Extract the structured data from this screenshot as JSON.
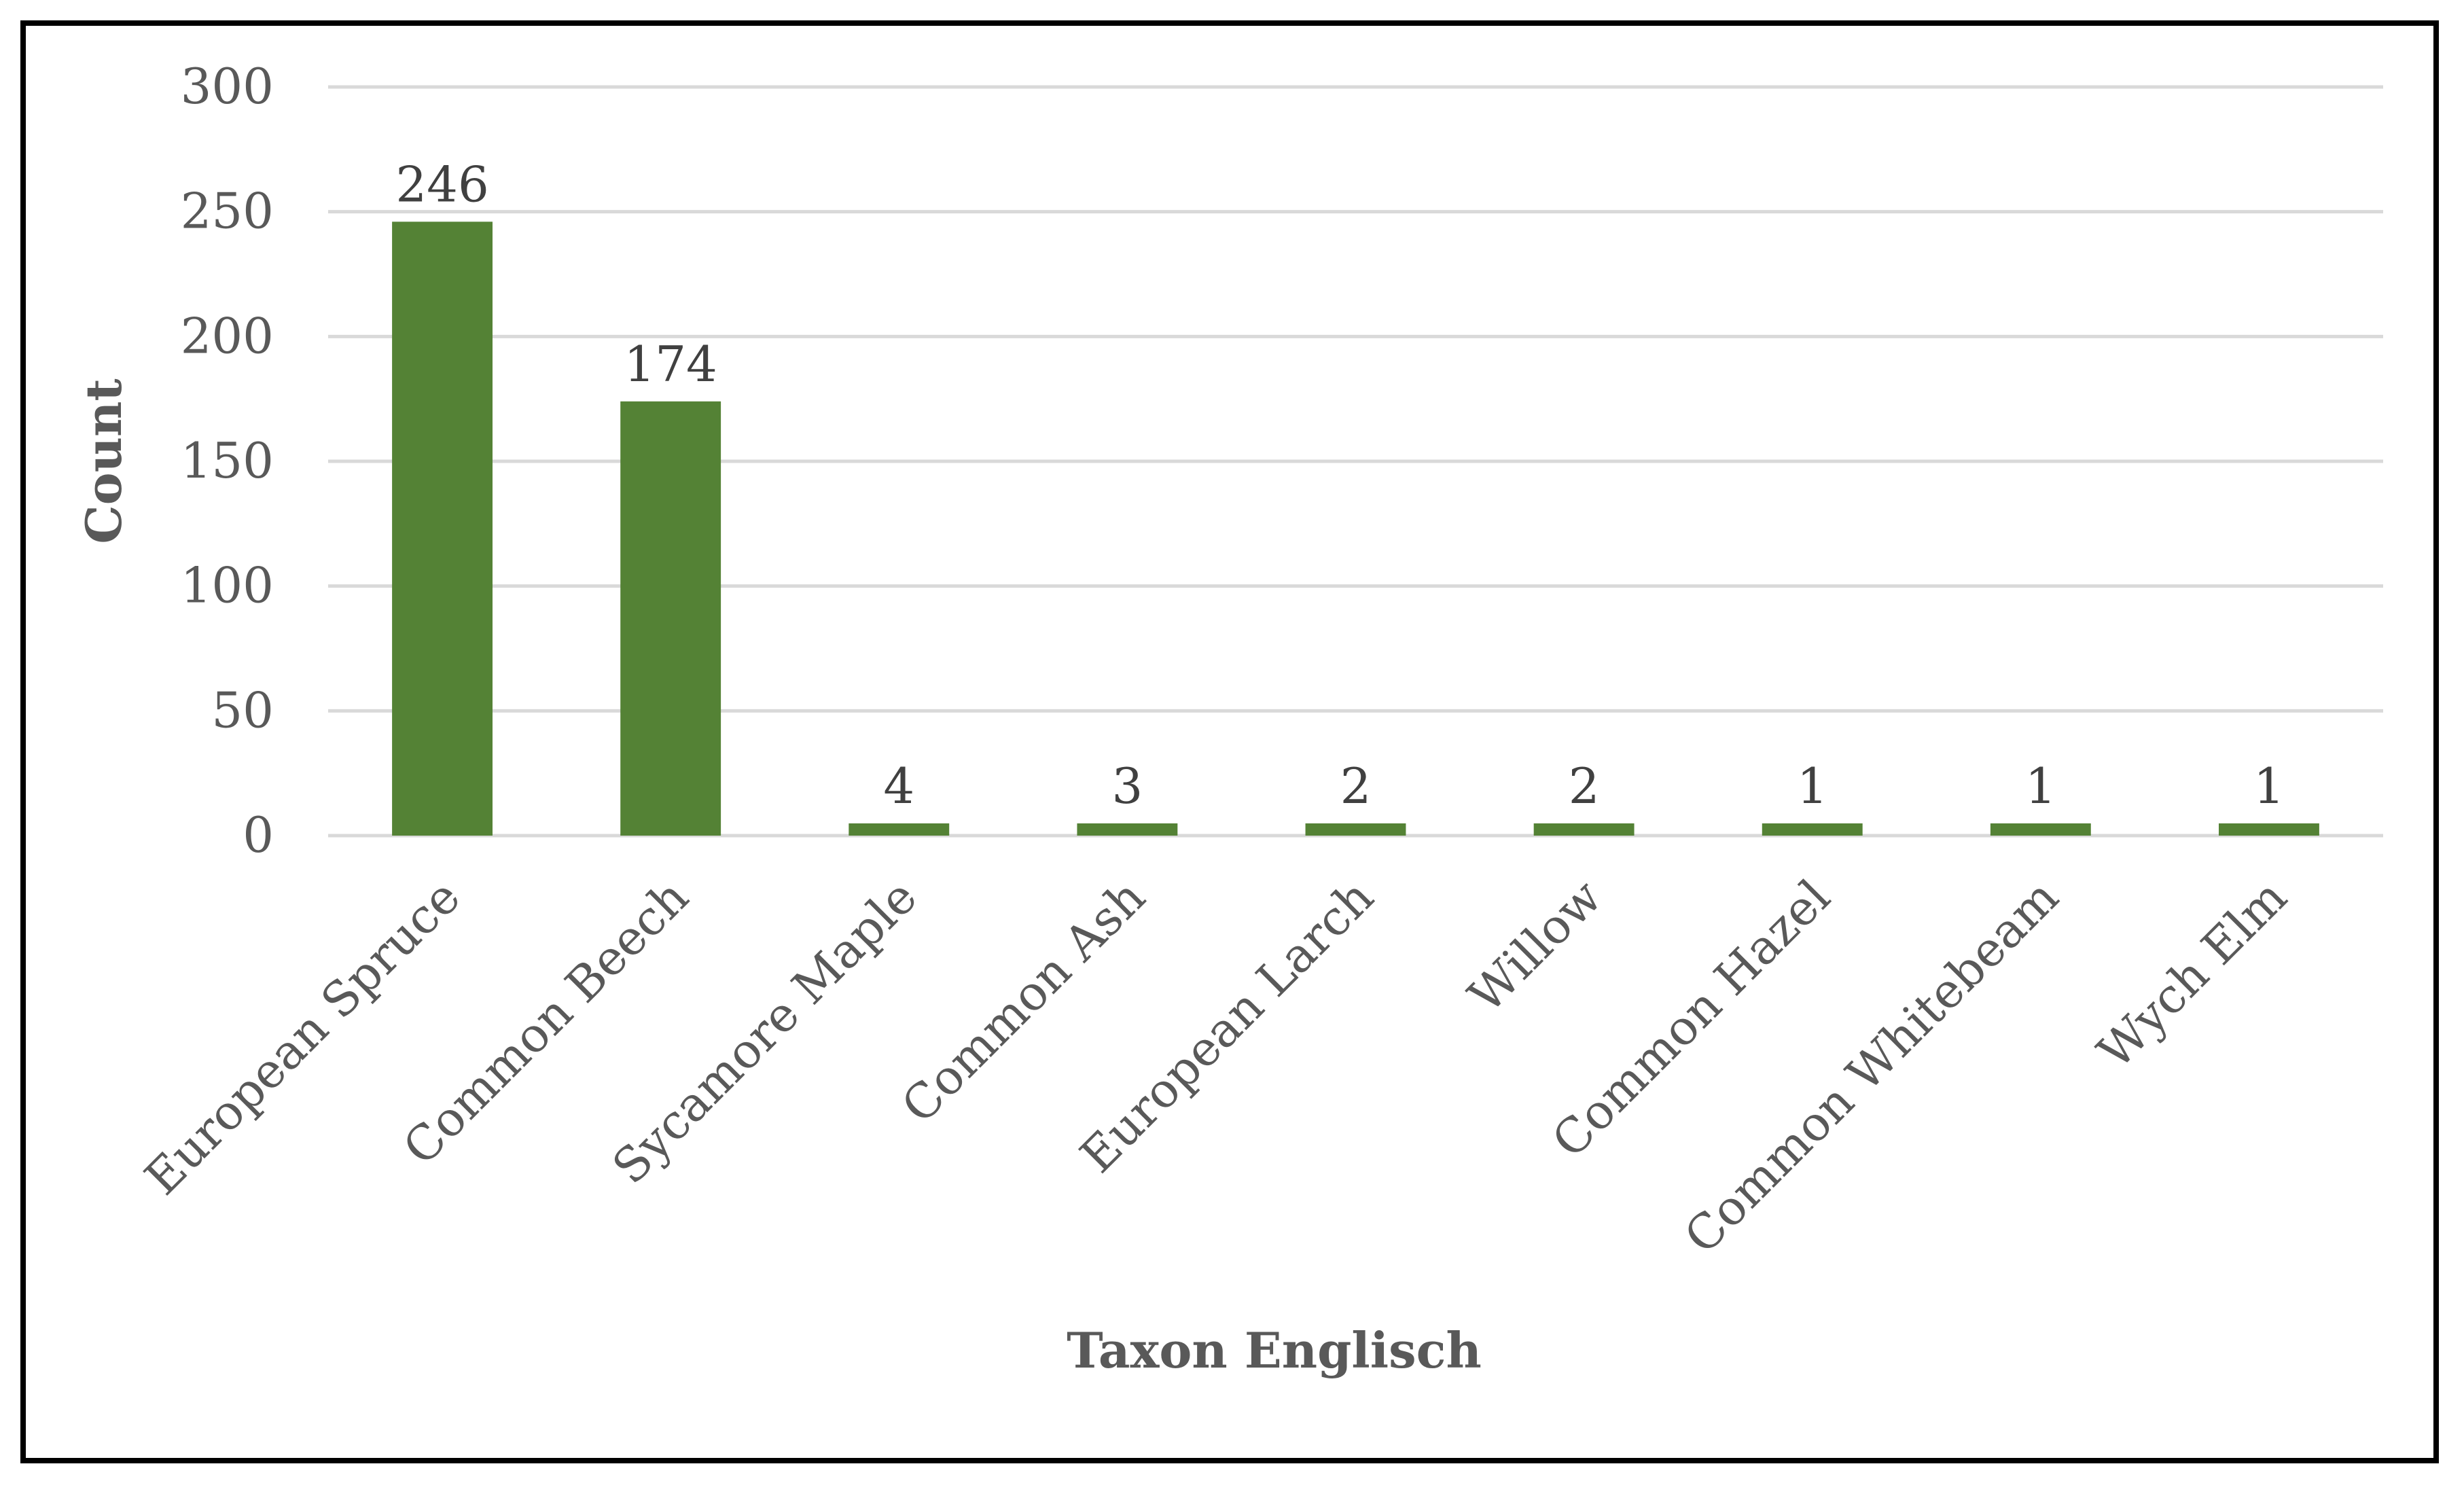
{
  "chart_data": {
    "type": "bar",
    "title": "",
    "xlabel": "Taxon Englisch",
    "ylabel": "Count",
    "categories": [
      "European Spruce",
      "Common Beech",
      "Sycamore Maple",
      "Common Ash",
      "European Larch",
      "Willow",
      "Common Hazel",
      "Common Whitebeam",
      "Wych Elm"
    ],
    "values": [
      246,
      174,
      4,
      3,
      2,
      2,
      1,
      1,
      1
    ],
    "data_labels": [
      "246",
      "174",
      "4",
      "3",
      "2",
      "2",
      "1",
      "1",
      "1"
    ],
    "ylim": [
      0,
      300
    ],
    "yticks": [
      0,
      50,
      100,
      150,
      200,
      250,
      300
    ],
    "ytick_labels": [
      "0",
      "50",
      "100",
      "150",
      "200",
      "250",
      "300"
    ],
    "grid": true,
    "legend": "none",
    "bar_color": "#548235",
    "frame_color": "#000000"
  }
}
